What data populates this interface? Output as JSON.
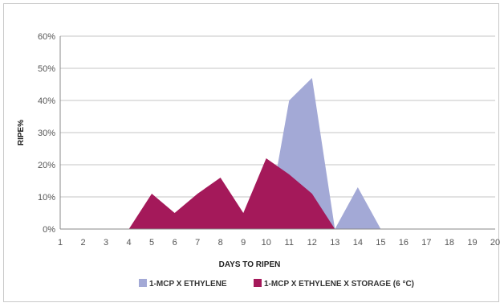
{
  "chart_data": {
    "type": "area",
    "xlabel": "DAYS TO RIPEN",
    "ylabel": "RIPE%",
    "x": [
      1,
      2,
      3,
      4,
      5,
      6,
      7,
      8,
      9,
      10,
      11,
      12,
      13,
      14,
      15,
      16,
      17,
      18,
      19,
      20
    ],
    "x_tick_labels": [
      "1",
      "2",
      "3",
      "4",
      "5",
      "6",
      "7",
      "8",
      "9",
      "10",
      "11",
      "12",
      "13",
      "14",
      "15",
      "16",
      "17",
      "18",
      "19",
      "20"
    ],
    "y_tick_labels": [
      "0%",
      "10%",
      "20%",
      "30%",
      "40%",
      "50%",
      "60%"
    ],
    "ylim": [
      0,
      60
    ],
    "xlim": [
      1,
      20
    ],
    "grid": true,
    "legend_position": "bottom",
    "series": [
      {
        "name": "1-MCP X ETHYLENE",
        "color": "#a3a9d6",
        "values": [
          0,
          0,
          0,
          0,
          0,
          0,
          0,
          0,
          0,
          0,
          40,
          47,
          0,
          13,
          0,
          0,
          0,
          0,
          0,
          0
        ]
      },
      {
        "name": "1-MCP X ETHYLENE X STORAGE (6 °C)",
        "color": "#a4195a",
        "values": [
          0,
          0,
          0,
          0,
          11,
          5,
          11,
          16,
          5,
          22,
          17,
          11,
          0,
          0,
          0,
          0,
          0,
          0,
          0,
          0
        ]
      }
    ]
  }
}
